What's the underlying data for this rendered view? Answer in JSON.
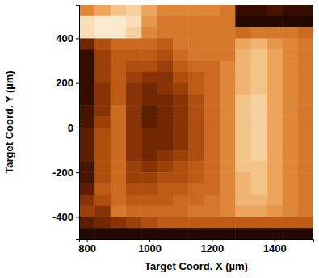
{
  "chart_data": {
    "type": "heatmap",
    "x_label": "Target Coord. X (µm)",
    "y_label": "Target Coord. Y (µm)",
    "xlim": [
      775,
      1525
    ],
    "ylim": [
      -500,
      550
    ],
    "xticks": [
      800,
      1000,
      1200,
      1400
    ],
    "yticks": [
      -400,
      -200,
      0,
      200,
      400
    ],
    "x_bins": [
      775,
      825,
      875,
      925,
      975,
      1025,
      1075,
      1125,
      1175,
      1225,
      1275,
      1325,
      1375,
      1425,
      1475,
      1525
    ],
    "y_bins": [
      550,
      500,
      450,
      400,
      350,
      300,
      250,
      200,
      150,
      100,
      50,
      0,
      -50,
      -100,
      -150,
      -200,
      -250,
      -300,
      -350,
      -400,
      -450,
      -500
    ],
    "color_range": [
      0,
      100
    ],
    "cells": [
      [
        60,
        70,
        80,
        85,
        70,
        60,
        60,
        60,
        60,
        55,
        10,
        10,
        15,
        10,
        10
      ],
      [
        90,
        95,
        95,
        90,
        65,
        55,
        55,
        55,
        55,
        55,
        5,
        5,
        5,
        5,
        5
      ],
      [
        90,
        95,
        95,
        85,
        60,
        55,
        55,
        55,
        55,
        55,
        50,
        55,
        55,
        55,
        50
      ],
      [
        25,
        40,
        50,
        50,
        50,
        45,
        55,
        55,
        55,
        55,
        70,
        75,
        65,
        60,
        55
      ],
      [
        10,
        35,
        45,
        45,
        45,
        40,
        50,
        55,
        55,
        55,
        75,
        80,
        70,
        60,
        55
      ],
      [
        10,
        35,
        45,
        40,
        40,
        35,
        45,
        50,
        50,
        60,
        75,
        80,
        70,
        60,
        55
      ],
      [
        10,
        35,
        45,
        35,
        30,
        30,
        40,
        45,
        50,
        60,
        75,
        80,
        70,
        60,
        55
      ],
      [
        10,
        30,
        45,
        30,
        25,
        30,
        35,
        45,
        50,
        60,
        75,
        80,
        70,
        60,
        55
      ],
      [
        10,
        30,
        45,
        30,
        25,
        25,
        30,
        40,
        50,
        60,
        80,
        85,
        70,
        60,
        55
      ],
      [
        15,
        30,
        50,
        30,
        20,
        25,
        30,
        40,
        50,
        60,
        80,
        85,
        70,
        60,
        55
      ],
      [
        15,
        35,
        50,
        30,
        20,
        25,
        30,
        40,
        50,
        60,
        80,
        85,
        70,
        60,
        55
      ],
      [
        20,
        40,
        50,
        30,
        25,
        25,
        30,
        40,
        50,
        60,
        80,
        85,
        70,
        60,
        55
      ],
      [
        20,
        40,
        50,
        30,
        25,
        25,
        30,
        40,
        50,
        60,
        80,
        85,
        70,
        60,
        55
      ],
      [
        20,
        40,
        50,
        30,
        25,
        30,
        35,
        40,
        50,
        60,
        80,
        85,
        70,
        60,
        55
      ],
      [
        15,
        40,
        50,
        35,
        30,
        35,
        40,
        45,
        50,
        60,
        80,
        80,
        70,
        60,
        55
      ],
      [
        15,
        40,
        50,
        35,
        35,
        40,
        40,
        45,
        50,
        60,
        75,
        80,
        70,
        60,
        55
      ],
      [
        20,
        45,
        50,
        40,
        40,
        45,
        45,
        50,
        50,
        60,
        75,
        80,
        70,
        60,
        55
      ],
      [
        30,
        40,
        50,
        45,
        45,
        45,
        50,
        50,
        55,
        60,
        75,
        75,
        70,
        60,
        55
      ],
      [
        35,
        30,
        55,
        50,
        50,
        50,
        50,
        55,
        55,
        60,
        70,
        70,
        65,
        60,
        55
      ],
      [
        20,
        25,
        30,
        35,
        40,
        45,
        45,
        45,
        45,
        45,
        45,
        45,
        45,
        45,
        45
      ],
      [
        5,
        5,
        5,
        5,
        5,
        5,
        5,
        5,
        5,
        5,
        5,
        5,
        5,
        5,
        5
      ]
    ]
  }
}
